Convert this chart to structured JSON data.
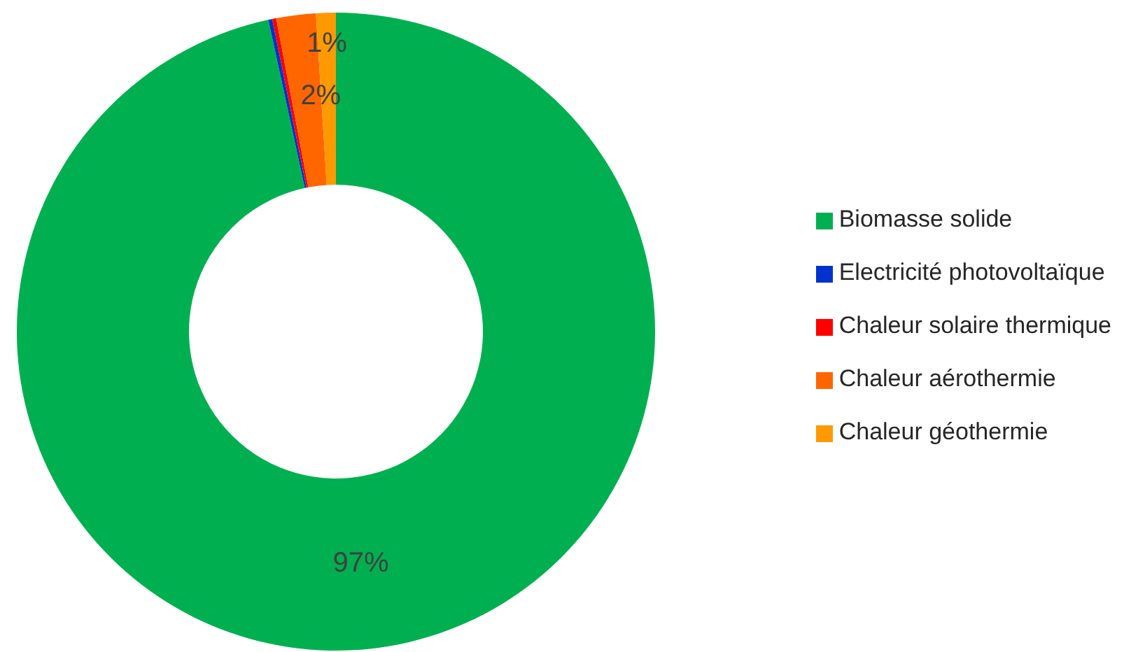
{
  "chart_data": {
    "type": "donut",
    "categories": [
      "Biomasse solide",
      "Electricité photovoltaïque",
      "Chaleur solaire thermique",
      "Chaleur aérothermie",
      "Chaleur géothermie"
    ],
    "values": [
      96.6,
      0.2,
      0.2,
      2.0,
      1.0
    ],
    "value_labels": [
      "97%",
      null,
      null,
      "2%",
      "1%"
    ],
    "colors": [
      "#00b050",
      "#0033cc",
      "#ff0000",
      "#ff6600",
      "#ff9900"
    ],
    "legend": "right"
  }
}
